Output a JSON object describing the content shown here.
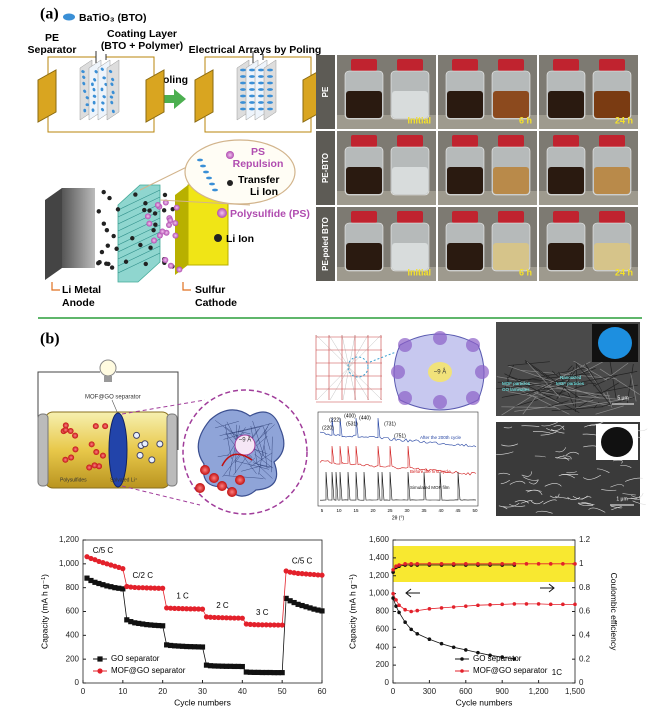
{
  "panel_a": {
    "label": "(a)",
    "bto_legend": "BaTiO₃ (BTO)",
    "pe_separator": [
      "PE",
      "Separator"
    ],
    "coating_layer": [
      "Coating Layer",
      "(BTO + Polymer)"
    ],
    "electrical_arrays": "Electrical Arrays by Poling",
    "poling": "Poling",
    "ps_repulsion": [
      "PS",
      "Repulsion"
    ],
    "transfer_li_ion": [
      "Transfer",
      "Li Ion"
    ],
    "polysulfide_legend": "Polysulfide (PS)",
    "li_ion_legend": "Li Ion",
    "anode": [
      "Li Metal",
      "Anode"
    ],
    "cathode": [
      "Sulfur",
      "Cathode"
    ],
    "photo_rows": [
      {
        "label": "PE",
        "times": [
          "Initial",
          "6 h",
          "24 h"
        ]
      },
      {
        "label": "PE-BTO"
      },
      {
        "label": "PE-poled BTO",
        "times": [
          "Initial",
          "6 h",
          "24 h"
        ]
      }
    ]
  },
  "panel_b": {
    "label": "(b)",
    "separator_label": "MOF@GO separator",
    "polysulfides": "Polysulfides",
    "solvated_li": "Solvated Li⁺",
    "pore_size": "~9 Å",
    "pore_size_structure": "~9 Å",
    "xrd": {
      "peaks": [
        "(220)",
        "(222)",
        "(400)",
        "(440)",
        "(531)",
        "(731)",
        "(751)"
      ],
      "traces": [
        "After the 200th cycle",
        "Before the first cycle",
        "Simulated MOF film"
      ],
      "x_label": "2θ (°)",
      "ticks": [
        "5",
        "10",
        "15",
        "20",
        "25",
        "30",
        "35",
        "40",
        "45",
        "50"
      ]
    },
    "sem_top": {
      "labels": [
        "MOF particles",
        "GO laminates",
        "Nanosized",
        "MOF particles"
      ],
      "scale": "5 μm"
    },
    "sem_bottom": {
      "scale": "1 μm"
    }
  },
  "chart_data": [
    {
      "type": "line",
      "x_label": "Cycle numbers",
      "y_label": "Capacity (mA h g⁻¹)",
      "x": [
        1,
        2,
        3,
        4,
        5,
        6,
        7,
        8,
        9,
        10,
        11,
        12,
        13,
        14,
        15,
        16,
        17,
        18,
        19,
        20,
        21,
        22,
        23,
        24,
        25,
        26,
        27,
        28,
        29,
        30,
        31,
        32,
        33,
        34,
        35,
        36,
        37,
        38,
        39,
        40,
        41,
        42,
        43,
        44,
        45,
        46,
        47,
        48,
        49,
        50,
        51,
        52,
        53,
        54,
        55,
        56,
        57,
        58,
        59,
        60
      ],
      "xlim": [
        0,
        60
      ],
      "xticks": [
        0,
        10,
        20,
        30,
        40,
        50,
        60
      ],
      "ylim": [
        0,
        1200
      ],
      "yticks": [
        0,
        200,
        400,
        600,
        800,
        {
          "value": 1000,
          "label": "1,000"
        },
        {
          "value": 1200,
          "label": "1,200"
        }
      ],
      "legend": "lower left",
      "annotations": [
        "C/5 C",
        "C/2 C",
        "1 C",
        "2 C",
        "3 C",
        "C/5 C"
      ],
      "series": [
        {
          "name": "GO separator",
          "color": "#111111",
          "marker": "square",
          "values": [
            880,
            860,
            845,
            835,
            825,
            815,
            808,
            800,
            795,
            790,
            530,
            515,
            505,
            500,
            495,
            490,
            487,
            484,
            482,
            480,
            320,
            315,
            312,
            310,
            308,
            306,
            305,
            304,
            303,
            302,
            150,
            145,
            143,
            142,
            141,
            140,
            140,
            139,
            139,
            138,
            92,
            90,
            89,
            89,
            88,
            88,
            88,
            87,
            87,
            87,
            710,
            690,
            675,
            660,
            650,
            640,
            630,
            620,
            612,
            605
          ]
        },
        {
          "name": "MOF@GO separator",
          "color": "#e3212b",
          "marker": "circle",
          "values": [
            1060,
            1045,
            1035,
            1020,
            1010,
            1000,
            990,
            980,
            970,
            960,
            810,
            805,
            802,
            800,
            800,
            798,
            797,
            796,
            795,
            795,
            630,
            628,
            626,
            625,
            624,
            623,
            622,
            622,
            621,
            620,
            555,
            552,
            550,
            549,
            548,
            547,
            546,
            545,
            545,
            544,
            495,
            492,
            490,
            489,
            488,
            488,
            487,
            487,
            486,
            486,
            940,
            930,
            925,
            920,
            918,
            915,
            912,
            910,
            907,
            905
          ]
        }
      ]
    },
    {
      "type": "line",
      "x_label": "Cycle numbers",
      "y_label": "Capacity (mA h g⁻¹)",
      "y2_label": "Coulombic efficiency",
      "xlim": [
        0,
        1500
      ],
      "xticks": [
        0,
        300,
        600,
        900,
        {
          "value": 1200,
          "label": "1,200"
        },
        {
          "value": 1500,
          "label": "1,500"
        }
      ],
      "ylim": [
        0,
        1600
      ],
      "yticks": [
        0,
        200,
        400,
        600,
        800,
        {
          "value": 1000,
          "label": "1,000"
        },
        {
          "value": 1200,
          "label": "1,200"
        },
        {
          "value": 1400,
          "label": "1,400"
        },
        {
          "value": 1600,
          "label": "1,600"
        }
      ],
      "y2lim": [
        0,
        1.2
      ],
      "y2ticks": [
        0,
        0.2,
        0.4,
        0.6,
        0.8,
        1,
        1.2
      ],
      "legend": "lower right",
      "annotations": [
        "1C"
      ],
      "series": [
        {
          "name": "GO separator",
          "color": "#111111",
          "marker": "circle",
          "x": [
            1,
            25,
            50,
            100,
            150,
            200,
            300,
            400,
            500,
            600,
            700,
            800,
            900,
            1000
          ],
          "values": [
            950,
            860,
            790,
            680,
            600,
            550,
            490,
            440,
            400,
            370,
            340,
            310,
            290,
            270
          ],
          "ce_values": [
            0.93,
            0.97,
            0.98,
            0.99,
            0.99,
            0.99,
            0.99,
            0.99,
            0.99,
            0.99,
            0.99,
            0.99,
            0.99,
            0.99
          ]
        },
        {
          "name": "MOF@GO separator",
          "color": "#e3212b",
          "marker": "circle",
          "x": [
            1,
            25,
            50,
            100,
            150,
            200,
            300,
            400,
            500,
            600,
            700,
            800,
            900,
            1000,
            1100,
            1200,
            1300,
            1400,
            1500
          ],
          "values": [
            1000,
            930,
            870,
            820,
            800,
            810,
            830,
            840,
            850,
            860,
            870,
            875,
            880,
            885,
            885,
            885,
            880,
            880,
            880
          ],
          "ce_values": [
            0.95,
            0.98,
            0.99,
            1,
            1,
            1,
            1,
            1,
            1,
            1,
            1,
            1,
            1,
            1,
            1,
            1,
            1,
            1,
            1
          ]
        }
      ]
    }
  ]
}
